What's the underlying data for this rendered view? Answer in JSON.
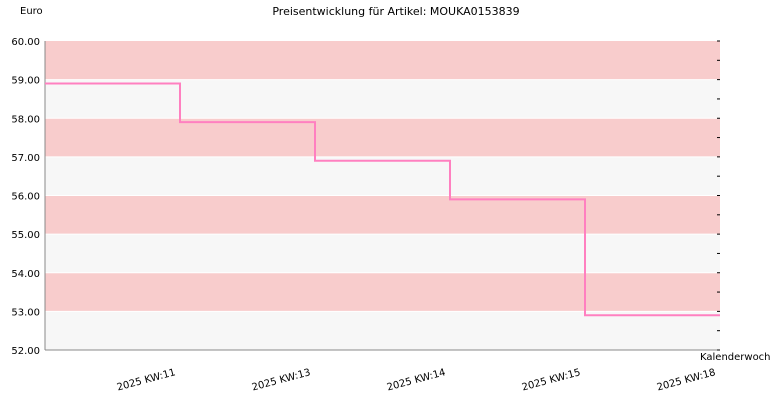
{
  "chart_data": {
    "type": "line",
    "step": true,
    "title": "Preisentwicklung für Artikel: MOUKA0153839",
    "ylabel": "Euro",
    "xlabel": "Kalenderwoche",
    "ylim": [
      52.0,
      60.0
    ],
    "yticks": [
      "52.00",
      "53.00",
      "54.00",
      "55.00",
      "56.00",
      "57.00",
      "58.00",
      "59.00",
      "60.00"
    ],
    "categories": [
      "2025 KW:11",
      "2025 KW:13",
      "2025 KW:14",
      "2025 KW:15",
      "2025 KW:18"
    ],
    "series": [
      {
        "values": [
          58.9,
          57.9,
          56.9,
          55.9,
          52.9
        ]
      }
    ],
    "grid": true,
    "band_colors": [
      "#f7f7f7",
      "#f8cccc"
    ],
    "line_color": "#ff80c0"
  }
}
